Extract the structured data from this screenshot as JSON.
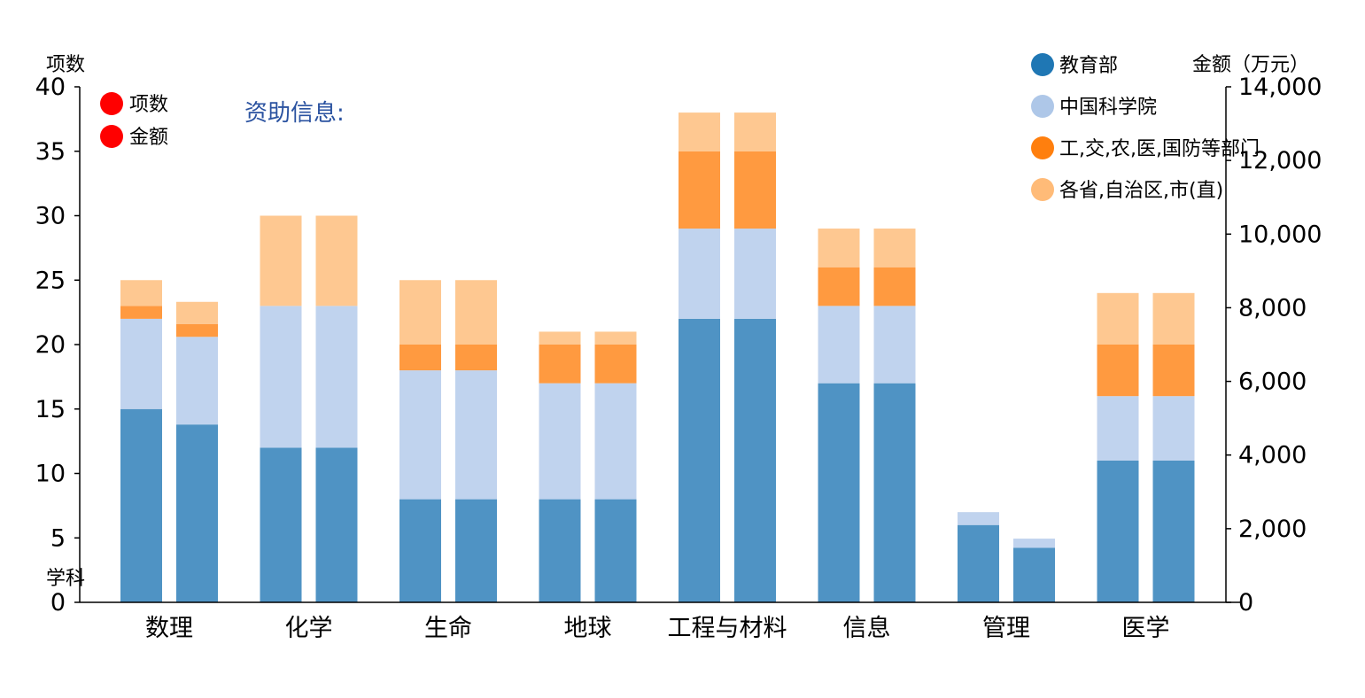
{
  "chart_data": {
    "type": "bar",
    "stacked": true,
    "grouped": true,
    "categories": [
      "数理",
      "化学",
      "生命",
      "地球",
      "工程与材料",
      "信息",
      "管理",
      "医学"
    ],
    "xlabel": "学科",
    "ylabel_left": "项数",
    "ylabel_right": "金额（万元）",
    "ylim_left": [
      0,
      40
    ],
    "ylim_right": [
      0,
      14000
    ],
    "left_ticks": [
      "0",
      "5",
      "10",
      "15",
      "20",
      "25",
      "30",
      "35",
      "40"
    ],
    "right_ticks": [
      "0",
      "2,000",
      "4,000",
      "6,000",
      "8,000",
      "10,000",
      "12,000",
      "14,000"
    ],
    "series": [
      {
        "name": "教育部",
        "color": "#1f77b4",
        "bar_color": "#4f93c4",
        "count": [
          15,
          12,
          8,
          8,
          22,
          17,
          6,
          11
        ],
        "amount": [
          4830,
          4200,
          2800,
          2800,
          7700,
          5950,
          1480,
          3850
        ]
      },
      {
        "name": "中国科学院",
        "color": "#aec7e8",
        "bar_color": "#c0d3ee",
        "count": [
          7,
          11,
          10,
          9,
          7,
          6,
          1,
          5
        ],
        "amount": [
          2380,
          3850,
          3500,
          3150,
          2450,
          2100,
          250,
          1750
        ]
      },
      {
        "name": "工,交,农,医,国防等部门",
        "color": "#ff7f0e",
        "bar_color": "#ff9a40",
        "count": [
          1,
          0,
          2,
          3,
          6,
          3,
          0,
          4
        ],
        "amount": [
          350,
          0,
          700,
          1050,
          2100,
          1050,
          0,
          1400
        ]
      },
      {
        "name": "各省,自治区,市(直)",
        "color": "#ffbb78",
        "bar_color": "#fec891",
        "count": [
          2,
          7,
          5,
          1,
          3,
          3,
          0,
          4
        ],
        "amount": [
          600,
          2450,
          1750,
          350,
          1050,
          1050,
          0,
          1400
        ]
      }
    ],
    "group_legend": [
      {
        "label": "项数",
        "color": "#ff0000"
      },
      {
        "label": "金额",
        "color": "#ff0000"
      }
    ],
    "info_label": "资助信息:",
    "legend_position": "top-right"
  }
}
